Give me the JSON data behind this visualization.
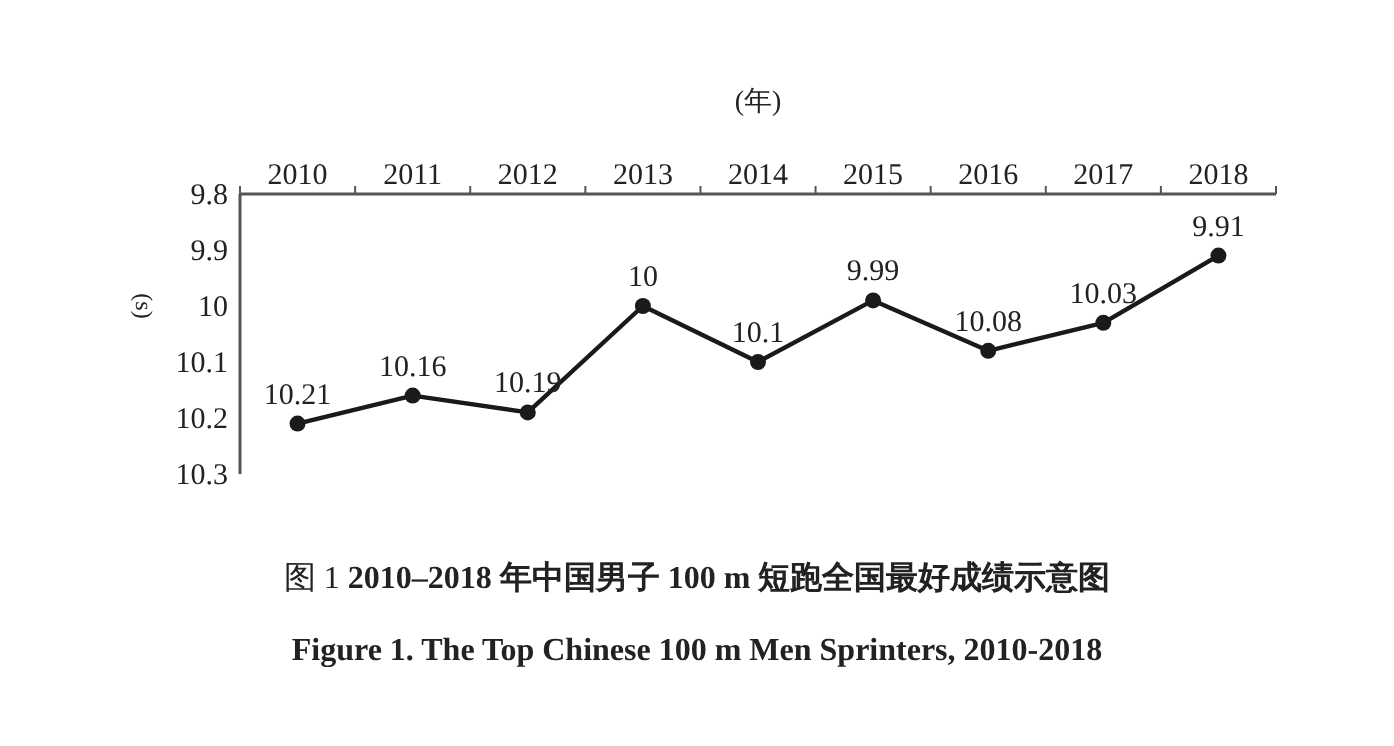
{
  "chart_data": {
    "type": "line",
    "title": "图 1  **2010–2018 年中国男子 100 m 短跑全国最好成绩示意图**",
    "subtitle": "Figure 1.  The Top Chinese 100 m Men Sprinters, 2010-2018",
    "xlabel": "(年)",
    "ylabel": "(s)",
    "categories": [
      "2010",
      "2011",
      "2012",
      "2013",
      "2014",
      "2015",
      "2016",
      "2017",
      "2018"
    ],
    "values": [
      10.21,
      10.16,
      10.19,
      10.0,
      10.1,
      9.99,
      10.08,
      10.03,
      9.91
    ],
    "color": "#1a1a1a",
    "ylim": [
      10.3,
      9.8
    ],
    "yticks": [
      9.8,
      9.9,
      10,
      10.1,
      10.2,
      10.3
    ],
    "data_labels": true,
    "marker": "circle",
    "line_style": "solid"
  }
}
